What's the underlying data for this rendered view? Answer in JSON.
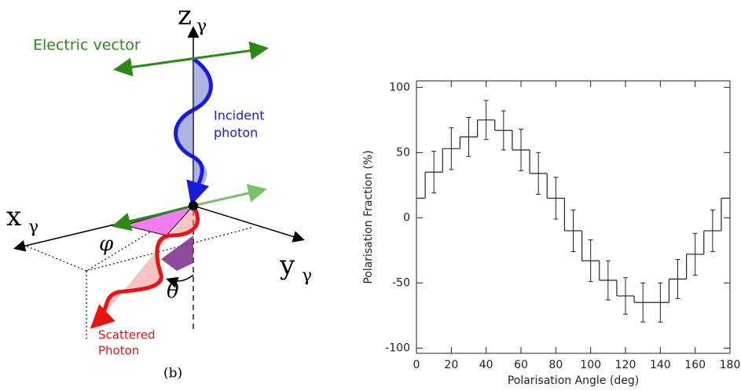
{
  "diagram": {
    "electric_vector": "Electric vector",
    "incident_photon": [
      "Incident",
      "photon"
    ],
    "scattered_photon": [
      "Scattered",
      "Photon"
    ],
    "panel_label": "(b)",
    "z_axis": {
      "main": "z",
      "sub": "γ"
    },
    "x_axis": {
      "main": "x",
      "sub": "γ"
    },
    "y_axis": {
      "main": "y",
      "sub": "γ"
    },
    "phi": "φ",
    "theta": "θ"
  },
  "chart_data": {
    "type": "step",
    "xlabel": "Polarisation Angle (deg)",
    "ylabel": "Polarisation Fraction (%)",
    "x": [
      0,
      10,
      20,
      30,
      40,
      50,
      60,
      70,
      80,
      90,
      100,
      110,
      120,
      130,
      140,
      150,
      160,
      170,
      180
    ],
    "values": [
      15,
      35,
      53,
      62,
      75,
      67,
      52,
      34,
      15,
      -10,
      -33,
      -48,
      -60,
      -65,
      -65,
      -47,
      -28,
      -10,
      15
    ],
    "errors": [
      null,
      16,
      16,
      15,
      15,
      15,
      16,
      16,
      16,
      16,
      16,
      15,
      14,
      15,
      15,
      15,
      16,
      16,
      null
    ],
    "color": "#222222",
    "xlim": [
      0,
      180
    ],
    "xticks": [
      0,
      20,
      40,
      60,
      80,
      100,
      120,
      140,
      160,
      180
    ],
    "ylim": [
      -104,
      105
    ],
    "yticks": [
      -100,
      -50,
      0,
      50,
      100
    ]
  }
}
